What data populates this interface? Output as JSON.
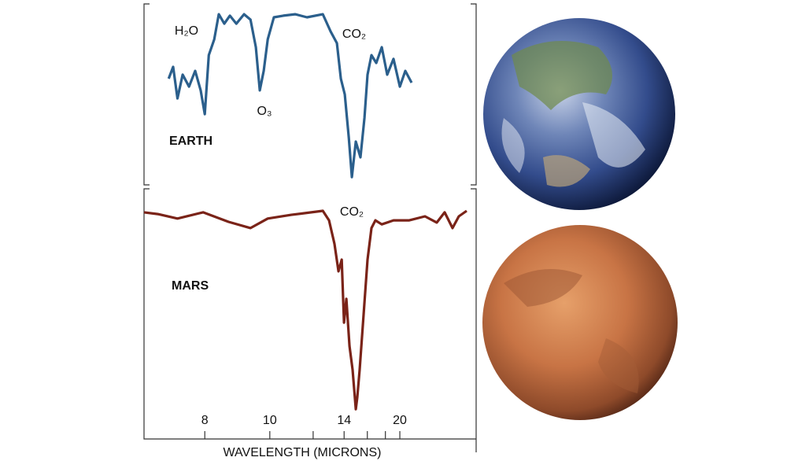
{
  "chart_data": [
    {
      "type": "line",
      "label": "EARTH",
      "color": "#2b5f8c",
      "annotations": [
        "H₂O",
        "O₃",
        "CO₂"
      ],
      "xscale": "reciprocal",
      "xlim": [
        6.74,
        48.4
      ],
      "ylim": [
        0,
        100
      ],
      "x": [
        7.2,
        7.29,
        7.38,
        7.49,
        7.63,
        7.77,
        7.9,
        8.0,
        8.1,
        8.24,
        8.36,
        8.51,
        8.67,
        8.86,
        9.1,
        9.31,
        9.49,
        9.63,
        9.77,
        9.92,
        10.16,
        10.55,
        11.08,
        11.67,
        12.56,
        13.05,
        13.48,
        13.76,
        14.05,
        14.36,
        14.61,
        14.94,
        15.35,
        15.72,
        16.02,
        16.42,
        16.93,
        17.56,
        18.23,
        19.07,
        20.0,
        20.88,
        21.99
      ],
      "series": [
        {
          "color": "#2b5f8c",
          "values": [
            58.7,
            65.2,
            47.8,
            60.9,
            54.3,
            63.0,
            52.2,
            39.1,
            71.7,
            80.4,
            94.3,
            89.1,
            93.5,
            89.1,
            94.3,
            91.3,
            76.1,
            52.2,
            63.0,
            80.4,
            92.6,
            93.5,
            94.3,
            92.6,
            94.3,
            84.8,
            78.3,
            58.7,
            50.0,
            26.1,
            4.3,
            23.9,
            15.2,
            37.0,
            60.9,
            71.7,
            67.4,
            76.1,
            60.9,
            69.6,
            54.3,
            63.0,
            56.5
          ]
        }
      ]
    },
    {
      "type": "line",
      "label": "MARS",
      "color": "#7a2318",
      "annotations": [
        "CO₂"
      ],
      "xlabel": "WAVELENGTH (MICRONS)",
      "xscale": "reciprocal",
      "xlim": [
        6.74,
        48.4
      ],
      "ylim": [
        0,
        100
      ],
      "xticks": [
        8,
        10,
        14,
        20
      ],
      "xminor_ticks": [
        12,
        16,
        18
      ],
      "x": [
        6.74,
        6.99,
        7.38,
        7.96,
        8.63,
        9.31,
        9.92,
        10.9,
        12.56,
        12.95,
        13.31,
        13.59,
        13.82,
        13.99,
        14.17,
        14.42,
        14.67,
        14.94,
        15.07,
        15.28,
        15.64,
        16.02,
        16.42,
        16.84,
        17.56,
        19.07,
        21.56,
        24.8,
        27.93,
        30.52,
        33.61,
        36.59,
        41.15
      ],
      "series": [
        {
          "color": "#7a2318",
          "values": [
            90.6,
            89.9,
            88.1,
            90.6,
            86.8,
            84.3,
            88.1,
            89.6,
            91.2,
            87.4,
            78.0,
            67.0,
            71.7,
            46.5,
            56.0,
            37.1,
            27.7,
            11.9,
            16.7,
            27.7,
            49.7,
            71.7,
            84.3,
            87.4,
            85.8,
            87.4,
            87.4,
            89.0,
            86.5,
            90.6,
            84.3,
            89.0,
            91.2
          ]
        }
      ]
    }
  ]
}
